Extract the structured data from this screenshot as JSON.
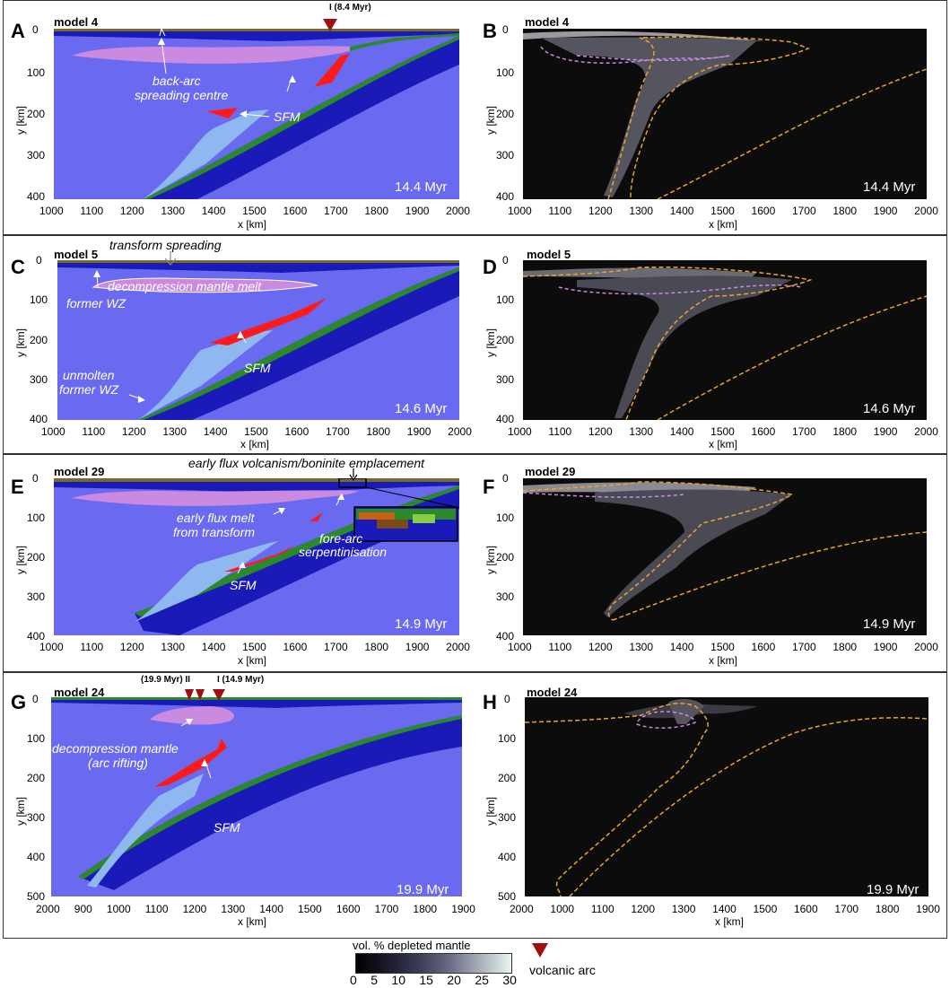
{
  "panels": {
    "A": {
      "letter": "A",
      "model": "model 4",
      "time": "14.4 Myr",
      "arc": "I (8.4 Myr)",
      "xlabel": "x [km]",
      "ylabel": "y [km]",
      "xticks": [
        "1000",
        "1100",
        "1200",
        "1300",
        "1400",
        "1500",
        "1600",
        "1700",
        "1800",
        "1900",
        "2000"
      ],
      "yticks": [
        "0",
        "100",
        "200",
        "300",
        "400"
      ],
      "ann1": "back-arc",
      "ann2": "spreading centre",
      "ann3": "SFM"
    },
    "B": {
      "letter": "B",
      "model": "model 4",
      "time": "14.4 Myr",
      "xlabel": "x [km]",
      "ylabel": "y [km]",
      "xticks": [
        "1000",
        "1100",
        "1200",
        "1300",
        "1400",
        "1500",
        "1600",
        "1700",
        "1800",
        "1900",
        "2000"
      ],
      "yticks": [
        "0",
        "100",
        "200",
        "300",
        "400"
      ]
    },
    "C": {
      "letter": "C",
      "model": "model 5",
      "time": "14.6 Myr",
      "xlabel": "x [km]",
      "ylabel": "y [km]",
      "xticks": [
        "1000",
        "1100",
        "1200",
        "1300",
        "1400",
        "1500",
        "1600",
        "1700",
        "1800",
        "1900",
        "2000"
      ],
      "yticks": [
        "0",
        "100",
        "200",
        "300",
        "400"
      ],
      "ann1": "transform spreading",
      "ann2": "decompression mantle melt",
      "ann3": "former WZ",
      "ann4": "SFM",
      "ann5": "unmolten",
      "ann6": "former WZ"
    },
    "D": {
      "letter": "D",
      "model": "model 5",
      "time": "14.6 Myr",
      "xlabel": "x [km]",
      "ylabel": "y [km]",
      "xticks": [
        "1000",
        "1100",
        "1200",
        "1300",
        "1400",
        "1500",
        "1600",
        "1700",
        "1800",
        "1900",
        "2000"
      ],
      "yticks": [
        "0",
        "100",
        "200",
        "300",
        "400"
      ]
    },
    "E": {
      "letter": "E",
      "model": "model 29",
      "time": "14.9 Myr",
      "xlabel": "x [km]",
      "ylabel": "y [km]",
      "xticks": [
        "1000",
        "1100",
        "1200",
        "1300",
        "1400",
        "1500",
        "1600",
        "1700",
        "1800",
        "1900",
        "2000"
      ],
      "yticks": [
        "0",
        "100",
        "200",
        "300",
        "400"
      ],
      "ann1": "early flux volcanism/boninite emplacement",
      "ann2": "early flux melt",
      "ann3": "from transform",
      "ann4": "SFM",
      "ann5": "fore-arc",
      "ann6": "serpentinisation"
    },
    "F": {
      "letter": "F",
      "model": "model 29",
      "time": "14.9 Myr",
      "xlabel": "x [km]",
      "ylabel": "y [km]",
      "xticks": [
        "1000",
        "1100",
        "1200",
        "1300",
        "1400",
        "1500",
        "1600",
        "1700",
        "1800",
        "1900",
        "2000"
      ],
      "yticks": [
        "0",
        "100",
        "200",
        "300",
        "400"
      ]
    },
    "G": {
      "letter": "G",
      "model": "model 24",
      "time": "19.9 Myr",
      "arc1": "(19.9 Myr) II",
      "arc2": "I (14.9 Myr)",
      "xlabel": "x [km]",
      "ylabel": "y [km]",
      "xticks": [
        "2000",
        "900",
        "1000",
        "1100",
        "1200",
        "1300",
        "1400",
        "1500",
        "1600",
        "1700",
        "1800",
        "1900"
      ],
      "yticks": [
        "0",
        "100",
        "200",
        "300",
        "400",
        "500"
      ],
      "ann1": "decompression mantle",
      "ann2": "(arc rifting)",
      "ann3": "SFM"
    },
    "H": {
      "letter": "H",
      "model": "model 24",
      "time": "19.9 Myr",
      "xlabel": "x [km]",
      "ylabel": "y [km]",
      "xticks": [
        "2000",
        "1000",
        "1100",
        "1200",
        "1300",
        "1400",
        "1500",
        "1600",
        "1700",
        "1800",
        "1900"
      ],
      "yticks": [
        "0",
        "100",
        "200",
        "300",
        "400",
        "500"
      ]
    }
  },
  "legend": {
    "title": "vol. % depleted mantle",
    "ticks": [
      "0",
      "5",
      "10",
      "15",
      "20",
      "25",
      "30"
    ],
    "arc_label": "volcanic arc"
  },
  "colors": {
    "mantle": "#6a6af0",
    "slab": "#1a1ab8",
    "crust": "#2a8a2a",
    "sed": "#7a6a2a",
    "melt": "#ff1a1a",
    "decomp": "#c98ae0",
    "wz": "#8fb8f0",
    "arc": "#a01010",
    "dark": "#0c0c0c"
  }
}
